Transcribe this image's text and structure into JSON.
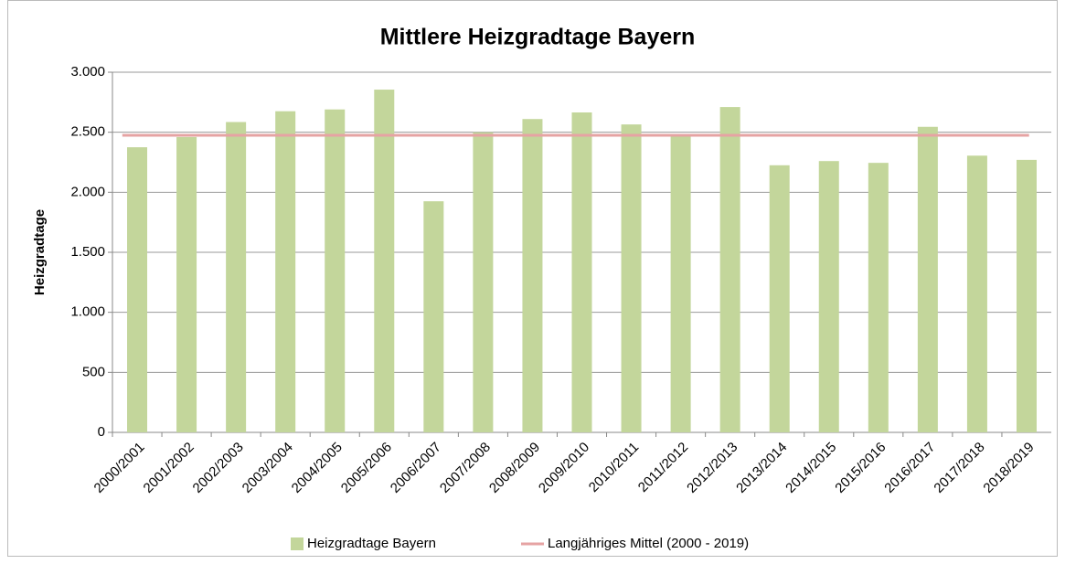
{
  "chart_data": {
    "type": "bar",
    "title": "Mittlere Heizgradtage Bayern",
    "y_label": "Heizgradtage",
    "categories": [
      "2000/2001",
      "2001/2002",
      "2002/2003",
      "2003/2004",
      "2004/2005",
      "2005/2006",
      "2006/2007",
      "2007/2008",
      "2008/2009",
      "2009/2010",
      "2010/2011",
      "2011/2012",
      "2012/2013",
      "2013/2014",
      "2014/2015",
      "2015/2016",
      "2016/2017",
      "2017/2018",
      "2018/2019"
    ],
    "series": [
      {
        "name": "Heizgradtage Bayern",
        "type": "bar",
        "color": "#c3d69b",
        "values": [
          2375,
          2460,
          2585,
          2675,
          2690,
          2855,
          1925,
          2500,
          2610,
          2665,
          2565,
          2475,
          2710,
          2225,
          2260,
          2245,
          2545,
          2305,
          2270
        ]
      },
      {
        "name": "Langjähriges Mittel (2000 - 2019)",
        "type": "line",
        "color": "#e6a3a3",
        "values": [
          2475,
          2475,
          2475,
          2475,
          2475,
          2475,
          2475,
          2475,
          2475,
          2475,
          2475,
          2475,
          2475,
          2475,
          2475,
          2475,
          2475,
          2475,
          2475
        ]
      }
    ],
    "ylim": [
      0,
      3000
    ],
    "yticks": [
      0,
      500,
      {
        "value": 1000,
        "label": "1.000"
      },
      {
        "value": 1500,
        "label": "1.500"
      },
      {
        "value": 2000,
        "label": "2.000"
      },
      {
        "value": 2500,
        "label": "2.500"
      },
      {
        "value": 3000,
        "label": "3.000"
      }
    ],
    "grid": true,
    "legend": "bottom"
  }
}
